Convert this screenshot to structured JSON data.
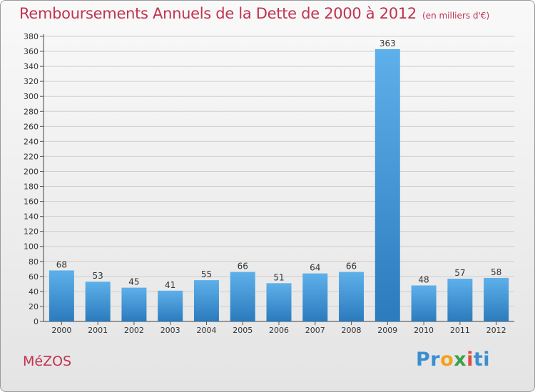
{
  "title": "Remboursements Annuels de la Dette de 2000 à 2012",
  "unit": "(en milliers d'€)",
  "commune": "MéZOS",
  "logo": {
    "p1": "Pr",
    "p2": "o",
    "p3": "x",
    "p4": "i",
    "p5": "ti"
  },
  "colors": {
    "title": "#c0334f",
    "bar_top": "#5eb0ea",
    "bar_bottom": "#2b7bbd",
    "grid": "#cfcfcf"
  },
  "chart_data": {
    "type": "bar",
    "categories": [
      "2000",
      "2001",
      "2002",
      "2003",
      "2004",
      "2005",
      "2006",
      "2007",
      "2008",
      "2009",
      "2010",
      "2011",
      "2012"
    ],
    "values": [
      68,
      53,
      45,
      41,
      55,
      66,
      51,
      64,
      66,
      363,
      48,
      57,
      58
    ],
    "ylim": [
      0,
      380
    ],
    "yticks": [
      0,
      20,
      40,
      60,
      80,
      100,
      120,
      140,
      160,
      180,
      200,
      220,
      240,
      260,
      280,
      300,
      320,
      340,
      360,
      380
    ],
    "grid": true,
    "legend": "none"
  }
}
